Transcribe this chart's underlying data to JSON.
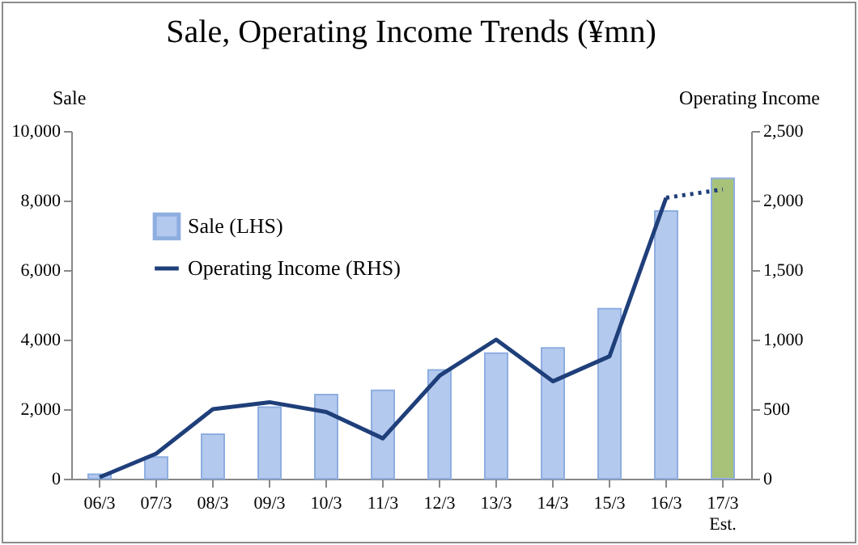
{
  "chart_data": {
    "type": "bar",
    "title": "Sale, Operating Income Trends (¥mn)",
    "ylabel": "Sale",
    "y2label": "Operating Income",
    "categories": [
      "06/3",
      "07/3",
      "08/3",
      "09/3",
      "10/3",
      "11/3",
      "12/3",
      "13/3",
      "14/3",
      "15/3",
      "16/3",
      "17/3\nEst."
    ],
    "series": [
      {
        "name": "Sale (LHS)",
        "color": "#b4c9ee",
        "colors": [
          "#b4c9ee",
          "#b4c9ee",
          "#b4c9ee",
          "#b4c9ee",
          "#b4c9ee",
          "#b4c9ee",
          "#b4c9ee",
          "#b4c9ee",
          "#b4c9ee",
          "#b4c9ee",
          "#b4c9ee",
          "#a8c27a"
        ],
        "values": [
          130,
          620,
          1280,
          2060,
          2420,
          2540,
          3130,
          3610,
          3760,
          4890,
          7700,
          8640
        ]
      },
      {
        "name": "Operating Income (RHS)",
        "type": "line",
        "axis": "y2",
        "color": "#1f3f7a",
        "line_style": "solid",
        "values": [
          10,
          180,
          500,
          550,
          480,
          290,
          740,
          1000,
          700,
          880,
          2020,
          null
        ]
      },
      {
        "type": "line",
        "axis": "y2",
        "color": "#1f3f7a",
        "line_style": "dotted",
        "values": [
          null,
          null,
          null,
          null,
          null,
          null,
          null,
          null,
          null,
          null,
          2020,
          2080
        ]
      }
    ],
    "ylim": [
      0,
      10000
    ],
    "yticks": [
      0,
      {
        "value": 2000,
        "label": "2,000"
      },
      {
        "value": 4000,
        "label": "4,000"
      },
      {
        "value": 6000,
        "label": "6,000"
      },
      {
        "value": 8000,
        "label": "8,000"
      },
      {
        "value": 10000,
        "label": "10,000"
      }
    ],
    "y2lim": [
      0,
      2500
    ],
    "y2ticks": [
      0,
      500,
      {
        "value": 1000,
        "label": "1,000"
      },
      {
        "value": 1500,
        "label": "1,500"
      },
      {
        "value": 2000,
        "label": "2,000"
      },
      {
        "value": 2500,
        "label": "2,500"
      }
    ],
    "grid": false,
    "legend": "top left"
  }
}
